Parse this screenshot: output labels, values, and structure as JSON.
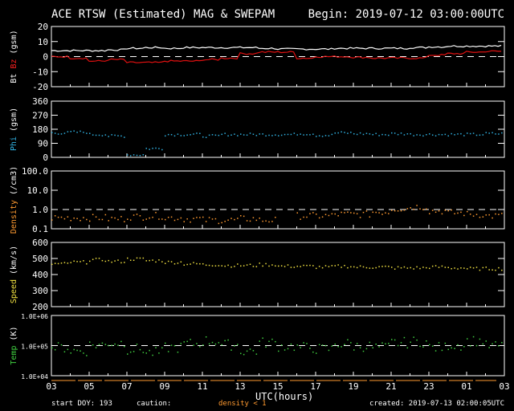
{
  "chart_data": [
    {
      "type": "line",
      "ylabel_parts": [
        {
          "text": "Bt",
          "color": "#ffffff"
        },
        {
          "text": " Bz",
          "color": "#ff2020"
        },
        {
          "text": " (gsm)",
          "color": "#ffffff"
        }
      ],
      "ylim": [
        -20,
        20
      ],
      "log": false,
      "yticks": [
        "20",
        "10",
        "0",
        "-10",
        "-20"
      ],
      "ytickvals": [
        20,
        10,
        0,
        -10,
        -20
      ],
      "zero_line": 0,
      "series": [
        {
          "name": "Bt",
          "color": "#ffffff",
          "values": [
            4,
            4,
            4,
            4.5,
            5.5,
            6,
            5.5,
            6,
            6,
            6,
            6,
            5.5,
            5,
            5,
            5,
            5.5,
            5.5,
            5.5,
            5.5,
            6,
            6.5,
            7,
            7,
            7
          ]
        },
        {
          "name": "Bz",
          "color": "#e01010",
          "values": [
            0,
            -1,
            -3,
            -2,
            -4,
            -4,
            -3,
            -3,
            -2,
            -1,
            2,
            3,
            3,
            -1,
            0,
            0,
            -0.5,
            -1,
            -1,
            -1,
            1,
            2,
            3,
            3.5
          ]
        }
      ]
    },
    {
      "type": "scatter",
      "ylabel_parts": [
        {
          "text": "Phi",
          "color": "#30b0e0"
        },
        {
          "text": " (gsm)",
          "color": "#ffffff"
        }
      ],
      "ylim": [
        0,
        360
      ],
      "log": false,
      "yticks": [
        "360",
        "270",
        "180",
        "90",
        "0"
      ],
      "ytickvals": [
        360,
        270,
        180,
        90,
        0
      ],
      "series": [
        {
          "name": "Phi",
          "color": "#30b0e0",
          "values": [
            160,
            165,
            150,
            140,
            20,
            60,
            150,
            150,
            140,
            150,
            150,
            150,
            150,
            155,
            145,
            160,
            155,
            150,
            155,
            150,
            150,
            150,
            150,
            155
          ]
        }
      ]
    },
    {
      "type": "scatter",
      "ylabel_parts": [
        {
          "text": "Density",
          "color": "#ff9a30"
        },
        {
          "text": " (/cm3)",
          "color": "#ffffff"
        }
      ],
      "ylim": [
        0.1,
        100
      ],
      "log": true,
      "yticks": [
        "100.0",
        "10.0",
        "1.0",
        "0.1"
      ],
      "ytickvals": [
        100,
        10,
        1,
        0.1
      ],
      "dashed_line": 1,
      "series": [
        {
          "name": "Density",
          "color": "#ff9a30",
          "values": [
            0.4,
            0.4,
            0.4,
            0.35,
            0.45,
            0.5,
            0.4,
            0.35,
            0.3,
            0.3,
            0.35,
            0.3,
            null,
            0.5,
            0.5,
            0.6,
            0.6,
            0.8,
            1.2,
            1.5,
            0.9,
            0.7,
            0.6,
            0.5
          ]
        }
      ]
    },
    {
      "type": "scatter",
      "ylabel_parts": [
        {
          "text": "Speed",
          "color": "#f0e040"
        },
        {
          "text": " (km/s)",
          "color": "#ffffff"
        }
      ],
      "ylim": [
        200,
        600
      ],
      "log": false,
      "yticks": [
        "600",
        "500",
        "400",
        "300",
        "200"
      ],
      "ytickvals": [
        600,
        500,
        400,
        300,
        200
      ],
      "series": [
        {
          "name": "Speed",
          "color": "#f0e040",
          "values": [
            470,
            480,
            495,
            485,
            500,
            490,
            480,
            470,
            465,
            460,
            460,
            465,
            455,
            455,
            450,
            455,
            450,
            450,
            445,
            445,
            450,
            445,
            440,
            440
          ]
        }
      ]
    },
    {
      "type": "scatter",
      "ylabel_parts": [
        {
          "text": "Temp",
          "color": "#40d040"
        },
        {
          "text": " (K)",
          "color": "#ffffff"
        }
      ],
      "ylim": [
        10000,
        1000000
      ],
      "log": true,
      "yticks": [
        "1.0E+06",
        "1.0E+05",
        "1.0E+04"
      ],
      "ytickvals": [
        1000000,
        100000,
        10000
      ],
      "dashed_line": 100000,
      "series": [
        {
          "name": "Temp",
          "color": "#40d040",
          "values": [
            90000,
            70000,
            110000,
            130000,
            80000,
            60000,
            90000,
            120000,
            150000,
            110000,
            70000,
            130000,
            100000,
            90000,
            80000,
            120000,
            100000,
            90000,
            130000,
            140000,
            90000,
            110000,
            150000,
            100000
          ]
        }
      ]
    }
  ],
  "title": "ACE RTSW (Estimated) MAG & SWEPAM",
  "begin": "Begin: 2019-07-12 03:00:00UTC",
  "xticks": [
    "03",
    "05",
    "07",
    "09",
    "11",
    "13",
    "15",
    "17",
    "19",
    "21",
    "23",
    "01",
    "03"
  ],
  "xlabel": "UTC(hours)",
  "footer": {
    "start": "start DOY: 193",
    "caution": "caution:",
    "density_note": "density < 1",
    "created": "created: 2019-07-13 02:00:05UTC"
  }
}
